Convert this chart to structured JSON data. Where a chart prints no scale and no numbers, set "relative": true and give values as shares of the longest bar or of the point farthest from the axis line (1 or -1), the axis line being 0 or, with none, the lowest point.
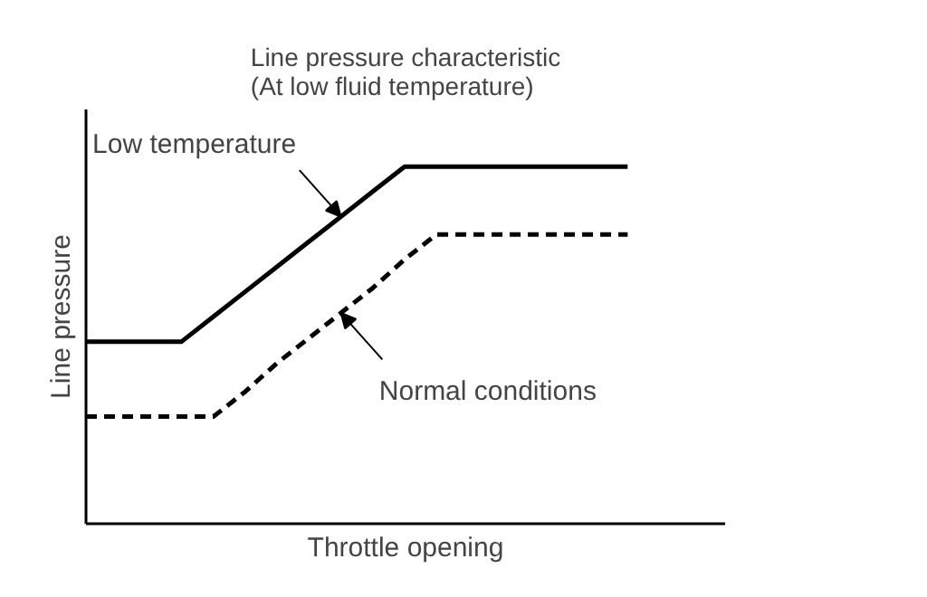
{
  "chart_data": {
    "type": "line",
    "title": "Line pressure characteristic\n(At low fluid temperature)",
    "xlabel": "Throttle opening",
    "ylabel": "Line pressure",
    "relative": true,
    "marker": "none",
    "categories": [
      null,
      null,
      null,
      null,
      null,
      null,
      null,
      null,
      null,
      null,
      null,
      null,
      null,
      null,
      null,
      null,
      null,
      null
    ],
    "series": [
      {
        "color": "#000000",
        "line_style": "solid",
        "values": [
          0.51,
          0.51,
          0.51,
          0.51,
          0.58,
          0.65,
          0.72,
          0.79,
          0.86,
          0.93,
          1,
          1,
          1,
          1,
          1,
          1,
          1,
          1
        ]
      },
      {
        "color": "#000000",
        "line_style": "dashed",
        "values": [
          0.3,
          0.3,
          0.3,
          0.3,
          0.3,
          0.37,
          0.45,
          0.52,
          0.59,
          0.66,
          0.74,
          0.81,
          0.81,
          0.81,
          0.81,
          0.81,
          0.81,
          0.81
        ]
      }
    ],
    "annotations": [
      "Low temperature",
      "Normal conditions"
    ]
  }
}
